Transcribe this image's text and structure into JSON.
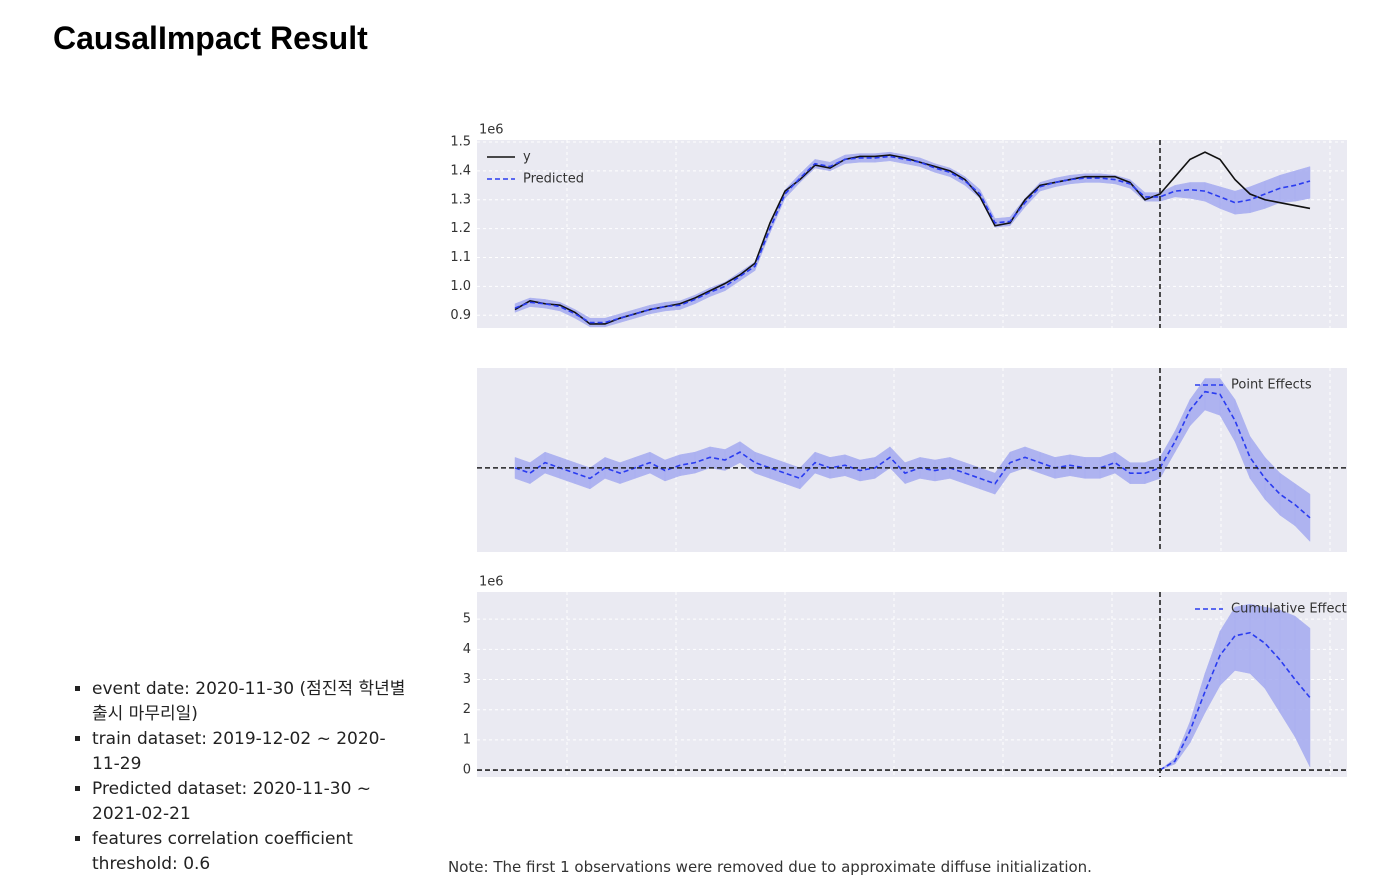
{
  "header": {
    "title": "CausalImpact Result"
  },
  "bullets": [
    "event date: 2020-11-30 (점진적 학년별 출시 마무리일)",
    "train dataset: 2019-12-02 ~ 2020-11-29",
    "Predicted dataset: 2020-11-30 ~ 2021-02-21",
    "features correlation coefficient threshold: 0.6"
  ],
  "note": "Note: The first 1 observations were removed due to approximate diffuse initialization.",
  "chart_data": [
    {
      "type": "line",
      "offset_label": "1e6",
      "ylim": [
        0.856,
        1.507
      ],
      "yticks": [
        0.9,
        {
          "value": 1.0,
          "label": "1.0"
        },
        1.1,
        1.2,
        1.3,
        1.4,
        {
          "value": 1.5,
          "label": "1.5"
        }
      ],
      "grid": true,
      "legend": "upper left",
      "event_index": 43,
      "series": [
        {
          "name": "y",
          "color": "#111111",
          "linestyle": "solid",
          "values": [
            0.92,
            0.95,
            0.94,
            0.935,
            0.91,
            0.87,
            0.87,
            0.89,
            0.905,
            0.92,
            0.93,
            0.94,
            0.96,
            0.985,
            1.01,
            1.04,
            1.08,
            1.22,
            1.33,
            1.37,
            1.42,
            1.41,
            1.44,
            1.45,
            1.45,
            1.455,
            1.445,
            1.43,
            1.415,
            1.4,
            1.37,
            1.31,
            1.21,
            1.22,
            1.3,
            1.35,
            1.36,
            1.37,
            1.38,
            1.38,
            1.38,
            1.36,
            1.3,
            1.32,
            1.38,
            1.44,
            1.465,
            1.44,
            1.37,
            1.32,
            1.3,
            1.29,
            1.28,
            1.27
          ]
        },
        {
          "name": "Predicted",
          "color": "#2a3cf0",
          "linestyle": "dashed",
          "band_color": "#a4aaf0",
          "values": [
            0.925,
            0.945,
            0.94,
            0.93,
            0.905,
            0.875,
            0.875,
            0.89,
            0.905,
            0.92,
            0.93,
            0.935,
            0.955,
            0.98,
            1.0,
            1.035,
            1.07,
            1.2,
            1.32,
            1.375,
            1.425,
            1.415,
            1.44,
            1.445,
            1.445,
            1.45,
            1.44,
            1.43,
            1.41,
            1.395,
            1.365,
            1.32,
            1.22,
            1.225,
            1.29,
            1.345,
            1.36,
            1.37,
            1.375,
            1.375,
            1.37,
            1.355,
            1.31,
            1.31,
            1.33,
            1.335,
            1.33,
            1.31,
            1.29,
            1.3,
            1.32,
            1.34,
            1.35,
            1.365
          ],
          "lower": [
            0.91,
            0.93,
            0.925,
            0.915,
            0.89,
            0.86,
            0.86,
            0.875,
            0.89,
            0.905,
            0.915,
            0.92,
            0.94,
            0.965,
            0.985,
            1.02,
            1.055,
            1.185,
            1.305,
            1.36,
            1.41,
            1.4,
            1.425,
            1.43,
            1.43,
            1.435,
            1.425,
            1.415,
            1.395,
            1.38,
            1.35,
            1.305,
            1.205,
            1.21,
            1.275,
            1.33,
            1.345,
            1.355,
            1.36,
            1.36,
            1.355,
            1.34,
            1.295,
            1.295,
            1.31,
            1.305,
            1.295,
            1.27,
            1.25,
            1.255,
            1.27,
            1.29,
            1.295,
            1.305
          ],
          "upper": [
            0.94,
            0.96,
            0.955,
            0.945,
            0.92,
            0.89,
            0.89,
            0.905,
            0.92,
            0.935,
            0.945,
            0.95,
            0.97,
            0.995,
            1.015,
            1.05,
            1.085,
            1.215,
            1.335,
            1.39,
            1.44,
            1.43,
            1.455,
            1.46,
            1.46,
            1.465,
            1.455,
            1.445,
            1.425,
            1.41,
            1.38,
            1.335,
            1.235,
            1.24,
            1.305,
            1.36,
            1.375,
            1.385,
            1.39,
            1.39,
            1.385,
            1.37,
            1.325,
            1.325,
            1.35,
            1.36,
            1.36,
            1.345,
            1.33,
            1.345,
            1.365,
            1.385,
            1.4,
            1.415
          ]
        }
      ]
    },
    {
      "type": "line",
      "ylim": [
        -0.16,
        0.19
      ],
      "grid": true,
      "legend": "upper right",
      "event_index": 43,
      "baseline": 0,
      "series": [
        {
          "name": "Point Effects",
          "color": "#2a3cf0",
          "linestyle": "dashed",
          "band_color": "#a4aaf0",
          "values": [
            0,
            -0.01,
            0.01,
            0,
            -0.01,
            -0.02,
            0,
            -0.01,
            0,
            0.01,
            -0.005,
            0.005,
            0.01,
            0.02,
            0.015,
            0.03,
            0.01,
            0,
            -0.01,
            -0.02,
            0.01,
            0,
            0.005,
            -0.005,
            0,
            0.02,
            -0.01,
            0,
            -0.005,
            0,
            -0.01,
            -0.02,
            -0.03,
            0.01,
            0.02,
            0.01,
            0,
            0.005,
            0,
            0,
            0.01,
            -0.01,
            -0.01,
            0,
            0.05,
            0.11,
            0.145,
            0.14,
            0.09,
            0.02,
            -0.02,
            -0.05,
            -0.07,
            -0.095
          ],
          "lower": [
            -0.02,
            -0.03,
            -0.01,
            -0.02,
            -0.03,
            -0.04,
            -0.02,
            -0.03,
            -0.02,
            -0.01,
            -0.025,
            -0.015,
            -0.01,
            0,
            -0.005,
            0.01,
            -0.01,
            -0.02,
            -0.03,
            -0.04,
            -0.01,
            -0.02,
            -0.015,
            -0.025,
            -0.02,
            0,
            -0.03,
            -0.02,
            -0.025,
            -0.02,
            -0.03,
            -0.04,
            -0.05,
            -0.01,
            0,
            -0.01,
            -0.02,
            -0.015,
            -0.02,
            -0.02,
            -0.01,
            -0.03,
            -0.03,
            -0.02,
            0.03,
            0.08,
            0.11,
            0.1,
            0.05,
            -0.02,
            -0.06,
            -0.09,
            -0.11,
            -0.14
          ],
          "upper": [
            0.02,
            0.01,
            0.03,
            0.02,
            0.01,
            0,
            0.02,
            0.01,
            0.02,
            0.03,
            0.015,
            0.025,
            0.03,
            0.04,
            0.035,
            0.05,
            0.03,
            0.02,
            0.01,
            0,
            0.03,
            0.02,
            0.025,
            0.015,
            0.02,
            0.04,
            0.01,
            0.02,
            0.015,
            0.02,
            0.01,
            0,
            -0.01,
            0.03,
            0.04,
            0.03,
            0.02,
            0.025,
            0.02,
            0.02,
            0.03,
            0.01,
            0.01,
            0.02,
            0.07,
            0.13,
            0.17,
            0.17,
            0.13,
            0.06,
            0.02,
            -0.01,
            -0.03,
            -0.05
          ]
        }
      ]
    },
    {
      "type": "line",
      "offset_label": "1e6",
      "ylim": [
        -0.23,
        5.9
      ],
      "yticks": [
        0,
        1,
        2,
        3,
        4,
        5
      ],
      "grid": true,
      "legend": "upper right",
      "event_index": 43,
      "baseline": 0,
      "series": [
        {
          "name": "Cumulative Effect",
          "color": "#2a3cf0",
          "linestyle": "dashed",
          "band_color": "#a4aaf0",
          "values": [
            null,
            null,
            null,
            null,
            null,
            null,
            null,
            null,
            null,
            null,
            null,
            null,
            null,
            null,
            null,
            null,
            null,
            null,
            null,
            null,
            null,
            null,
            null,
            null,
            null,
            null,
            null,
            null,
            null,
            null,
            null,
            null,
            null,
            null,
            null,
            null,
            null,
            null,
            null,
            null,
            null,
            null,
            null,
            0,
            0.3,
            1.3,
            2.6,
            3.8,
            4.45,
            4.55,
            4.2,
            3.65,
            3.0,
            2.4
          ],
          "lower": [
            null,
            null,
            null,
            null,
            null,
            null,
            null,
            null,
            null,
            null,
            null,
            null,
            null,
            null,
            null,
            null,
            null,
            null,
            null,
            null,
            null,
            null,
            null,
            null,
            null,
            null,
            null,
            null,
            null,
            null,
            null,
            null,
            null,
            null,
            null,
            null,
            null,
            null,
            null,
            null,
            null,
            null,
            null,
            0,
            0.2,
            0.9,
            1.9,
            2.8,
            3.3,
            3.2,
            2.7,
            1.9,
            1.1,
            0.1
          ],
          "upper": [
            null,
            null,
            null,
            null,
            null,
            null,
            null,
            null,
            null,
            null,
            null,
            null,
            null,
            null,
            null,
            null,
            null,
            null,
            null,
            null,
            null,
            null,
            null,
            null,
            null,
            null,
            null,
            null,
            null,
            null,
            null,
            null,
            null,
            null,
            null,
            null,
            null,
            null,
            null,
            null,
            null,
            null,
            null,
            0,
            0.4,
            1.6,
            3.2,
            4.6,
            5.4,
            5.5,
            5.4,
            5.3,
            5.1,
            4.7
          ]
        }
      ]
    }
  ]
}
